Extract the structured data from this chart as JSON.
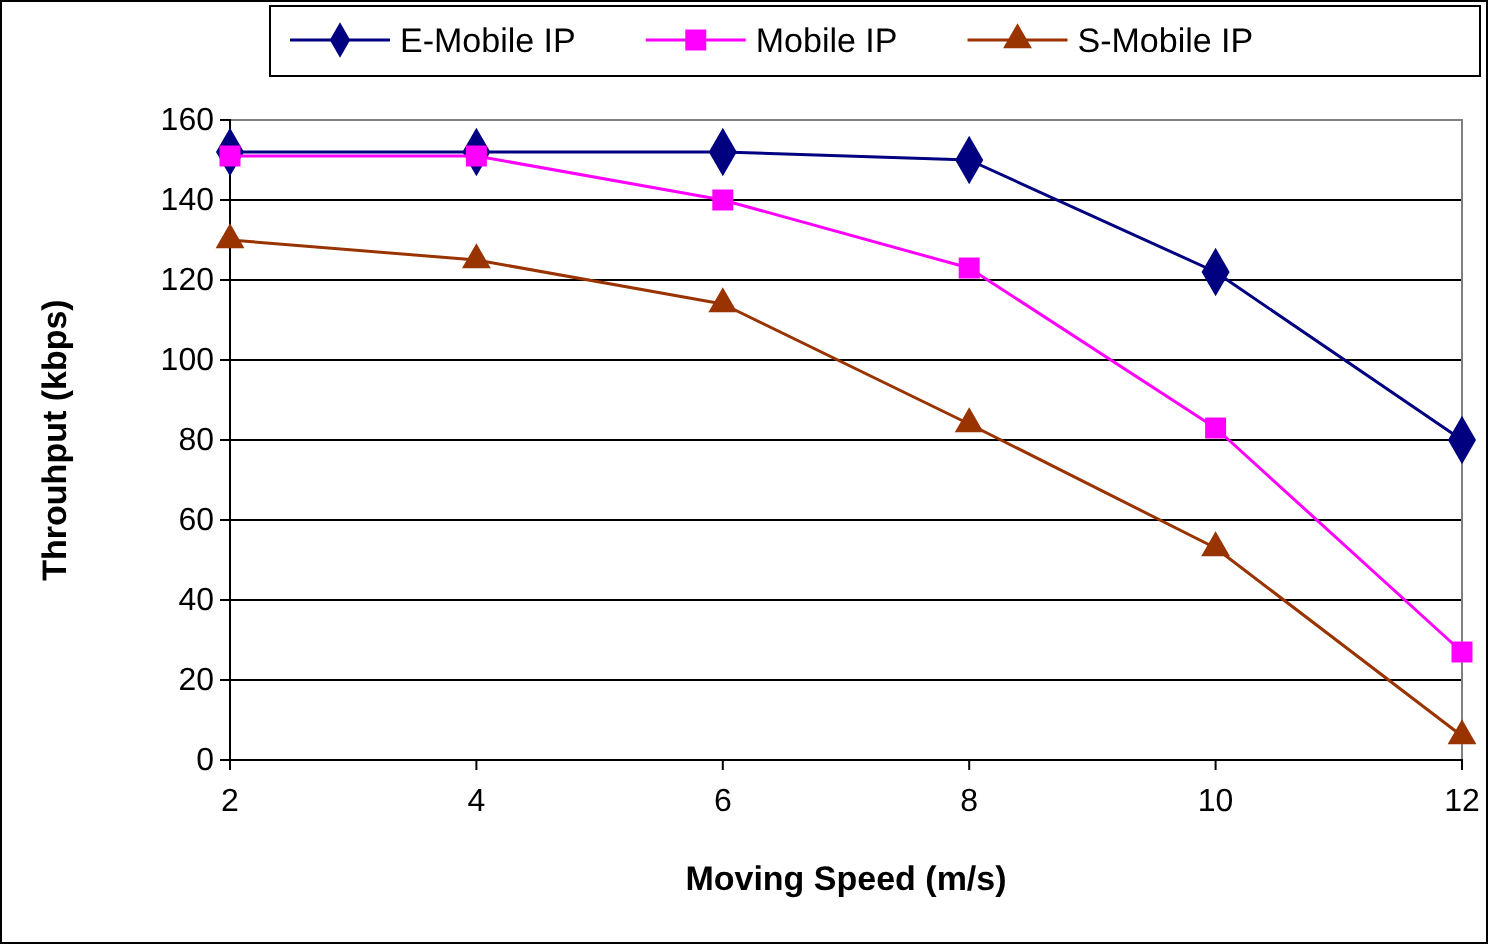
{
  "chart_data": {
    "type": "line",
    "xlabel": "Moving Speed (m/s)",
    "ylabel": "Throuhput (kbps)",
    "x": [
      2,
      4,
      6,
      8,
      10,
      12
    ],
    "xlim": [
      2,
      12
    ],
    "xticks": [
      2,
      4,
      6,
      8,
      10,
      12
    ],
    "ylim": [
      0,
      160
    ],
    "yticks": [
      0,
      20,
      40,
      60,
      80,
      100,
      120,
      140,
      160
    ],
    "grid": "y",
    "legend": "top",
    "series": [
      {
        "name": "E-Mobile IP",
        "color": "#000080",
        "marker": "diamond",
        "values": [
          152,
          152,
          152,
          150,
          122,
          80
        ]
      },
      {
        "name": "Mobile IP",
        "color": "#ff00ff",
        "marker": "square",
        "values": [
          151,
          151,
          140,
          123,
          83,
          27
        ]
      },
      {
        "name": "S-Mobile IP",
        "color": "#993300",
        "marker": "triangle",
        "values": [
          130,
          125,
          114,
          84,
          53,
          6
        ]
      }
    ]
  }
}
